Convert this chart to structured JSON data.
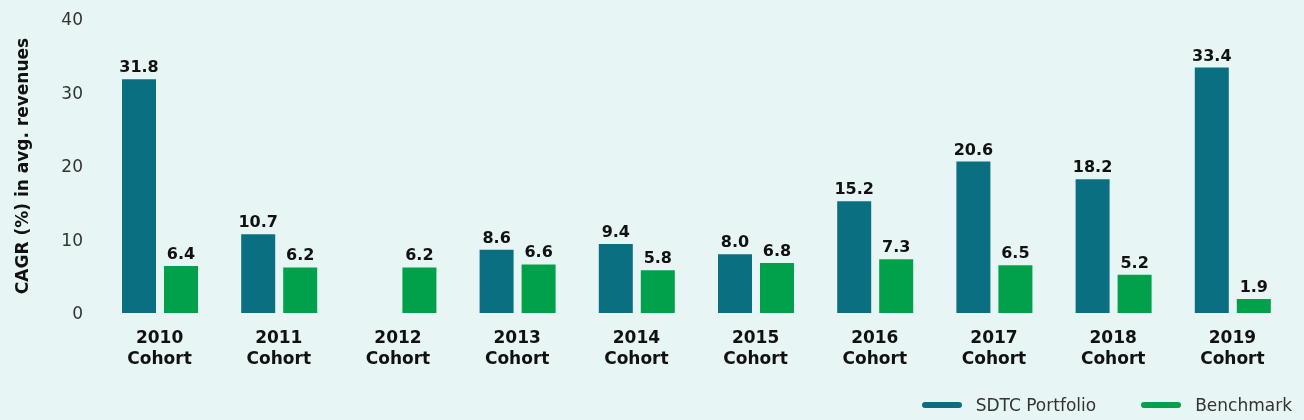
{
  "chart_data": {
    "type": "bar",
    "ylabel": "CAGR (%) in avg. revenues",
    "categories": [
      "2010 Cohort",
      "2011 Cohort",
      "2012 Cohort",
      "2013 Cohort",
      "2014 Cohort",
      "2015 Cohort",
      "2016 Cohort",
      "2017 Cohort",
      "2018 Cohort",
      "2019 Cohort"
    ],
    "series": [
      {
        "name": "SDTC Portfolio",
        "color": "#0b6f82",
        "values": [
          31.8,
          10.7,
          null,
          8.6,
          9.4,
          8.0,
          15.2,
          20.6,
          18.2,
          33.4
        ],
        "value_labels": [
          "31.8",
          "10.7",
          null,
          "8.6",
          "9.4",
          "8.0",
          "15.2",
          "20.6",
          "18.2",
          "33.4"
        ]
      },
      {
        "name": "Benchmark",
        "color": "#01a14b",
        "values": [
          6.4,
          6.2,
          6.2,
          6.6,
          5.8,
          6.8,
          7.3,
          6.5,
          5.2,
          1.9
        ],
        "value_labels": [
          "6.4",
          "6.2",
          "6.2",
          "6.6",
          "5.8",
          "6.8",
          "7.3",
          "6.5",
          "5.2",
          "1.9"
        ]
      }
    ],
    "ylim": [
      0,
      40
    ],
    "yticks": [
      0,
      10,
      20,
      30,
      40
    ],
    "grid": false,
    "legend": "bottom right"
  }
}
